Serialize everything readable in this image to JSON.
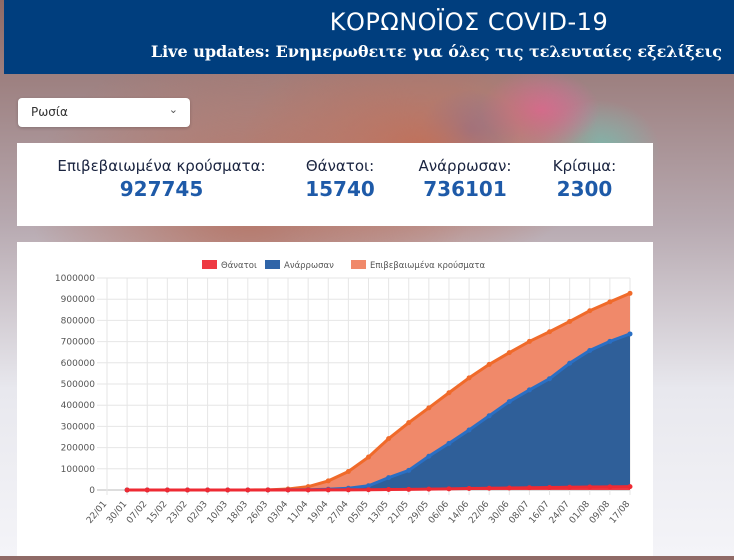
{
  "header": {
    "title": "ΚΟΡΩΝΟΪΟΣ COVID-19",
    "subtitle": "Live updates: Ενημερωθειτε για όλες τις τελευταίες εξελίξεις"
  },
  "country_select": {
    "value": "Ρωσία",
    "icon": "chevron-down-icon"
  },
  "stats": [
    {
      "label": "Επιβεβαιωμένα κρούσματα:",
      "value": "927745"
    },
    {
      "label": "Θάνατοι:",
      "value": "15740"
    },
    {
      "label": "Ανάρρωσαν:",
      "value": "736101"
    },
    {
      "label": "Κρίσιμα:",
      "value": "2300"
    }
  ],
  "chart_data": {
    "type": "area",
    "title": "",
    "xlabel": "",
    "ylabel": "",
    "ylim": [
      0,
      1000000
    ],
    "yticks": [
      "0",
      "100000",
      "200000",
      "300000",
      "400000",
      "500000",
      "600000",
      "700000",
      "800000",
      "900000",
      "1000000"
    ],
    "grid": true,
    "legend_position": "top",
    "categories": [
      "22/01",
      "30/01",
      "07/02",
      "15/02",
      "23/02",
      "02/03",
      "10/03",
      "18/03",
      "26/03",
      "03/04",
      "11/04",
      "19/04",
      "27/04",
      "05/05",
      "13/05",
      "21/05",
      "29/05",
      "06/06",
      "14/06",
      "22/06",
      "30/06",
      "08/07",
      "16/07",
      "24/07",
      "01/08",
      "09/08",
      "17/08"
    ],
    "series": [
      {
        "name": "Θάνατοι",
        "color": "#ee3a43",
        "values": [
          null,
          0,
          0,
          0,
          0,
          0,
          0,
          0,
          3,
          43,
          130,
          361,
          867,
          1451,
          2305,
          3099,
          4142,
          5520,
          6948,
          8260,
          9536,
          10843,
          11917,
          12892,
          13963,
          14903,
          15740
        ]
      },
      {
        "name": "Ανάρρωσαν",
        "color": "#2f64a8",
        "values": [
          null,
          0,
          0,
          0,
          0,
          0,
          0,
          0,
          38,
          333,
          1045,
          3446,
          8456,
          19865,
          58226,
          92681,
          159257,
          219898,
          283000,
          350000,
          417000,
          472000,
          525000,
          598000,
          658000,
          701000,
          736101
        ]
      },
      {
        "name": "Επιβεβαιωμένα κρούσματα",
        "color": "#f0896a",
        "values": [
          null,
          2,
          2,
          2,
          2,
          3,
          20,
          147,
          840,
          4731,
          15770,
          42853,
          87147,
          155370,
          242271,
          317554,
          387623,
          458689,
          528964,
          592280,
          647849,
          700792,
          746369,
          795038,
          845443,
          887536,
          927745
        ]
      }
    ]
  }
}
